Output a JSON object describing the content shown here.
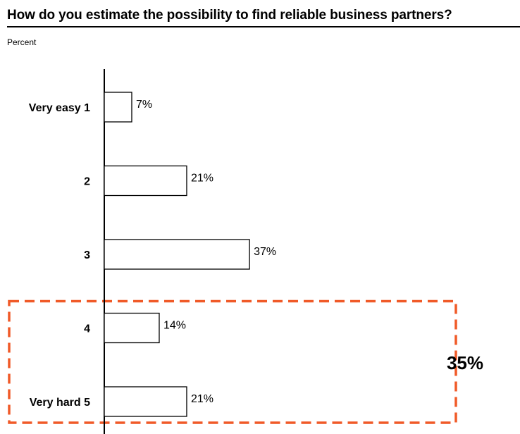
{
  "title": "How do you estimate the possibility to find reliable business partners?",
  "unit_label": "Percent",
  "colors": {
    "bar_fill": "#ffffff",
    "bar_stroke": "#000000",
    "highlight": "#f05a28",
    "text": "#000000"
  },
  "chart_data": {
    "type": "bar",
    "orientation": "horizontal",
    "title": "How do you estimate the possibility to find reliable business partners?",
    "xlabel": "",
    "ylabel": "Percent",
    "categories": [
      "Very easy  1",
      "2",
      "3",
      "4",
      "Very hard  5"
    ],
    "values": [
      7,
      21,
      37,
      14,
      21
    ],
    "value_labels": [
      "7%",
      "21%",
      "37%",
      "14%",
      "21%"
    ],
    "xlim": [
      0,
      40
    ],
    "grid": false,
    "legend": "none",
    "highlight": {
      "categories": [
        "4",
        "Very hard  5"
      ],
      "label": "35%",
      "style": "dashed-box"
    }
  }
}
